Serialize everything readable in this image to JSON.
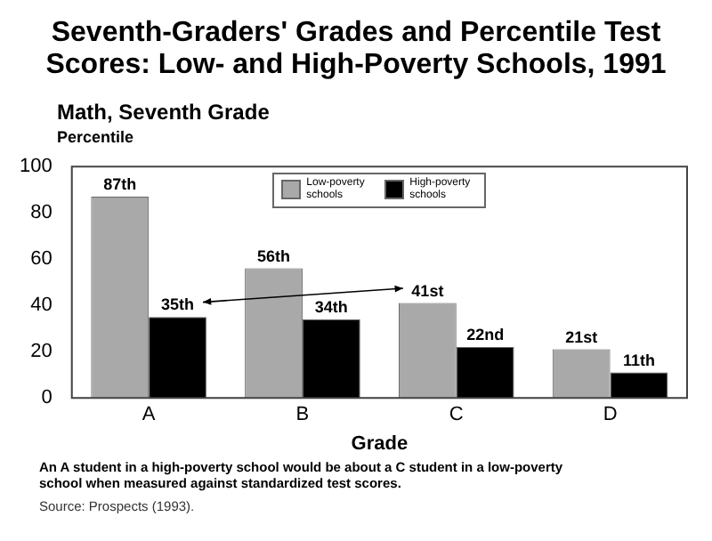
{
  "chart_data": {
    "type": "bar",
    "title": "Seventh-Graders' Grades and Percentile Test Scores:  Low- and High-Poverty Schools, 1991",
    "subtitle": "Math, Seventh Grade",
    "ylabel": "Percentile",
    "xlabel": "Grade",
    "categories": [
      "A",
      "B",
      "C",
      "D"
    ],
    "series": [
      {
        "name": "Low-poverty schools",
        "color": "#a9a9a9",
        "values": [
          87,
          56,
          41,
          21
        ],
        "value_labels": [
          "87th",
          "56th",
          "41st",
          "21st"
        ]
      },
      {
        "name": "High-poverty schools",
        "color": "#000000",
        "values": [
          35,
          34,
          22,
          11
        ],
        "value_labels": [
          "35th",
          "34th",
          "22nd",
          "11th"
        ]
      }
    ],
    "ylim": [
      0,
      100
    ],
    "yticks": [
      0,
      20,
      40,
      60,
      80,
      100
    ],
    "grid": false,
    "legend": "top",
    "annotations": [
      "An A student in a high-poverty school would be about a C student in a low-poverty school when measured against standardized test scores.",
      "Source:  Prospects (1993)."
    ]
  }
}
